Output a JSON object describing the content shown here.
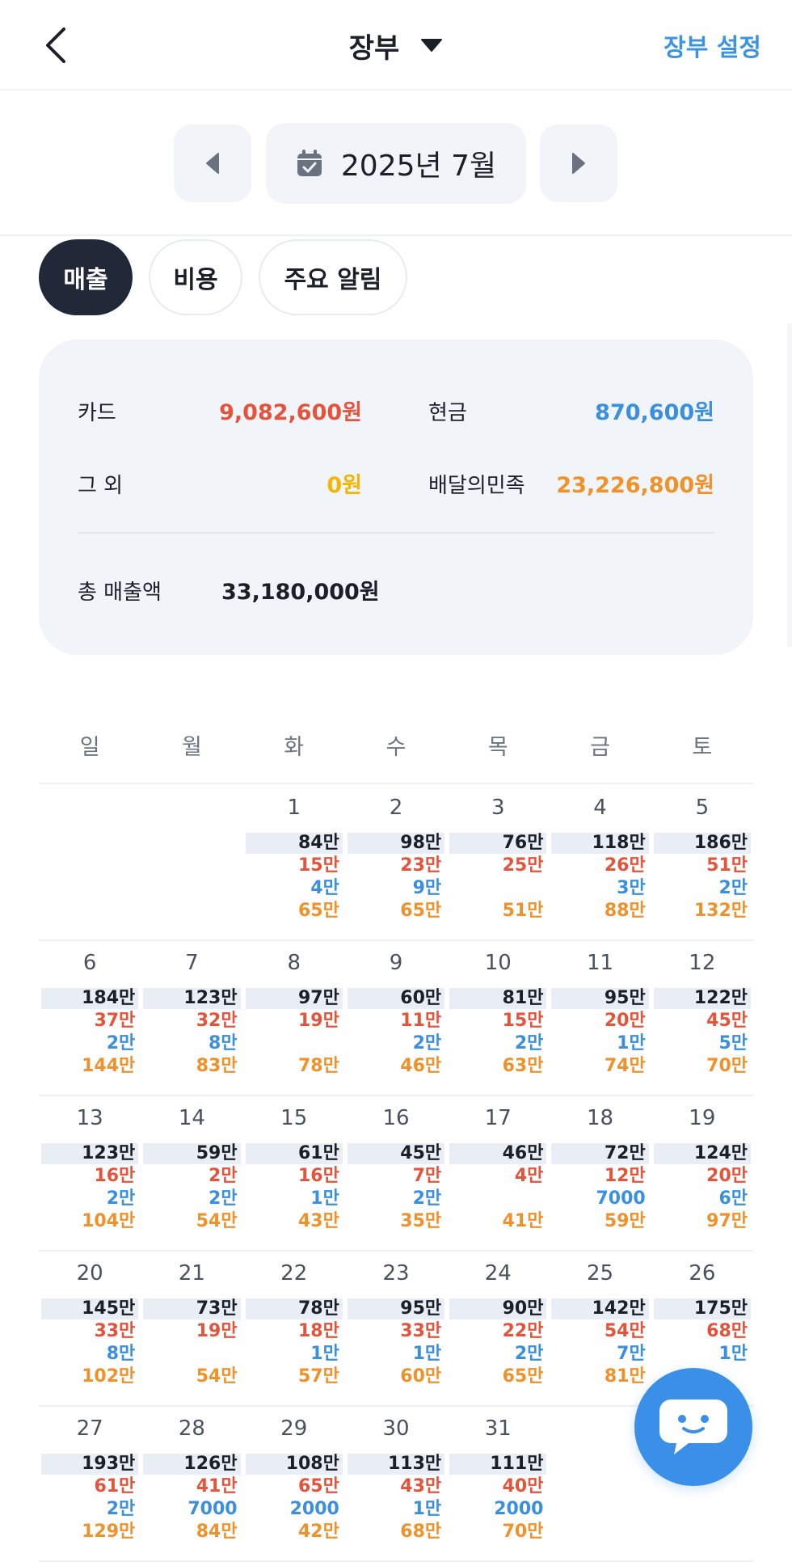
{
  "header": {
    "title": "장부",
    "settings_label": "장부 설정"
  },
  "month": {
    "label": "2025년 7월"
  },
  "tabs": [
    {
      "label": "매출",
      "active": true
    },
    {
      "label": "비용",
      "active": false
    },
    {
      "label": "주요 알림",
      "active": false
    }
  ],
  "summary": {
    "card_label": "카드",
    "card_value": "9,082,600원",
    "cash_label": "현금",
    "cash_value": "870,600원",
    "other_label": "그 외",
    "other_value": "0원",
    "delivery_label": "배달의민족",
    "delivery_value": "23,226,800원",
    "total_label": "총 매출액",
    "total_value": "33,180,000원"
  },
  "weekdays": [
    "일",
    "월",
    "화",
    "수",
    "목",
    "금",
    "토"
  ],
  "colors": {
    "card": "#e5533b",
    "cash": "#3a90df",
    "delivery": "#f0912a",
    "other": "#f2b705",
    "accent": "#3c93e2",
    "active_tab": "#212838"
  },
  "calendar": {
    "start_weekday": 2,
    "days": [
      {
        "day": "1",
        "total": "84만",
        "card": "15만",
        "cash": "4만",
        "delivery": "65만"
      },
      {
        "day": "2",
        "total": "98만",
        "card": "23만",
        "cash": "9만",
        "delivery": "65만"
      },
      {
        "day": "3",
        "total": "76만",
        "card": "25만",
        "cash": "",
        "delivery": "51만"
      },
      {
        "day": "4",
        "total": "118만",
        "card": "26만",
        "cash": "3만",
        "delivery": "88만"
      },
      {
        "day": "5",
        "total": "186만",
        "card": "51만",
        "cash": "2만",
        "delivery": "132만"
      },
      {
        "day": "6",
        "total": "184만",
        "card": "37만",
        "cash": "2만",
        "delivery": "144만"
      },
      {
        "day": "7",
        "total": "123만",
        "card": "32만",
        "cash": "8만",
        "delivery": "83만"
      },
      {
        "day": "8",
        "total": "97만",
        "card": "19만",
        "cash": "",
        "delivery": "78만"
      },
      {
        "day": "9",
        "total": "60만",
        "card": "11만",
        "cash": "2만",
        "delivery": "46만"
      },
      {
        "day": "10",
        "total": "81만",
        "card": "15만",
        "cash": "2만",
        "delivery": "63만"
      },
      {
        "day": "11",
        "total": "95만",
        "card": "20만",
        "cash": "1만",
        "delivery": "74만"
      },
      {
        "day": "12",
        "total": "122만",
        "card": "45만",
        "cash": "5만",
        "delivery": "70만"
      },
      {
        "day": "13",
        "total": "123만",
        "card": "16만",
        "cash": "2만",
        "delivery": "104만"
      },
      {
        "day": "14",
        "total": "59만",
        "card": "2만",
        "cash": "2만",
        "delivery": "54만"
      },
      {
        "day": "15",
        "total": "61만",
        "card": "16만",
        "cash": "1만",
        "delivery": "43만"
      },
      {
        "day": "16",
        "total": "45만",
        "card": "7만",
        "cash": "2만",
        "delivery": "35만"
      },
      {
        "day": "17",
        "total": "46만",
        "card": "4만",
        "cash": "",
        "delivery": "41만"
      },
      {
        "day": "18",
        "total": "72만",
        "card": "12만",
        "cash": "7000",
        "delivery": "59만"
      },
      {
        "day": "19",
        "total": "124만",
        "card": "20만",
        "cash": "6만",
        "delivery": "97만"
      },
      {
        "day": "20",
        "total": "145만",
        "card": "33만",
        "cash": "8만",
        "delivery": "102만"
      },
      {
        "day": "21",
        "total": "73만",
        "card": "19만",
        "cash": "",
        "delivery": "54만"
      },
      {
        "day": "22",
        "total": "78만",
        "card": "18만",
        "cash": "1만",
        "delivery": "57만"
      },
      {
        "day": "23",
        "total": "95만",
        "card": "33만",
        "cash": "1만",
        "delivery": "60만"
      },
      {
        "day": "24",
        "total": "90만",
        "card": "22만",
        "cash": "2만",
        "delivery": "65만"
      },
      {
        "day": "25",
        "total": "142만",
        "card": "54만",
        "cash": "7만",
        "delivery": "81만"
      },
      {
        "day": "26",
        "total": "175만",
        "card": "68만",
        "cash": "1만",
        "delivery": ""
      },
      {
        "day": "27",
        "total": "193만",
        "card": "61만",
        "cash": "2만",
        "delivery": "129만"
      },
      {
        "day": "28",
        "total": "126만",
        "card": "41만",
        "cash": "7000",
        "delivery": "84만"
      },
      {
        "day": "29",
        "total": "108만",
        "card": "65만",
        "cash": "2000",
        "delivery": "42만"
      },
      {
        "day": "30",
        "total": "113만",
        "card": "43만",
        "cash": "1만",
        "delivery": "68만"
      },
      {
        "day": "31",
        "total": "111만",
        "card": "40만",
        "cash": "2000",
        "delivery": "70만"
      }
    ]
  }
}
